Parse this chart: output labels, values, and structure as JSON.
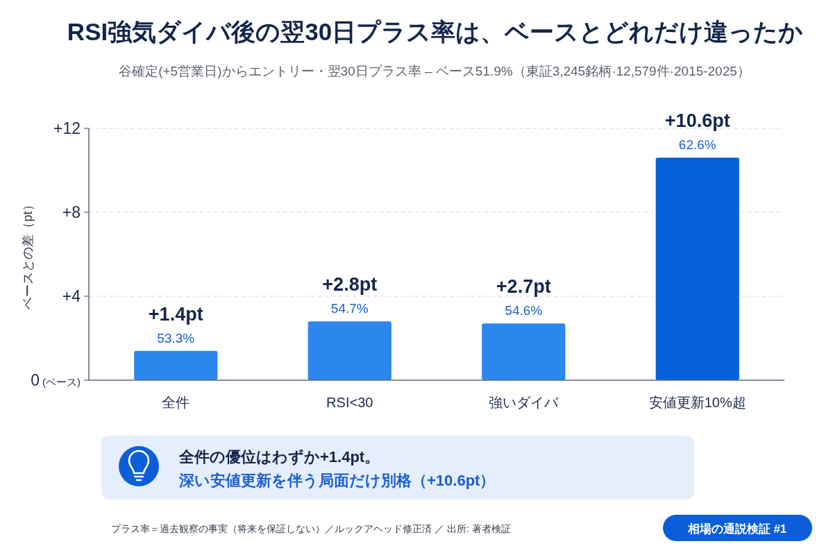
{
  "chart_data": {
    "type": "bar",
    "title": "RSI強気ダイバ後の翌30日プラス率は、ベースとどれだけ違ったか",
    "subtitle": "谷確定(+5営業日)からエントリー・翌30日プラス率 – ベース51.9%（東証3,245銘柄·12,579件·2015-2025）",
    "ylabel": "ベースとの差（pt）",
    "categories": [
      "全件",
      "RSI<30",
      "強いダイバ",
      "安値更新10%超"
    ],
    "values": [
      1.4,
      2.8,
      2.7,
      10.6
    ],
    "colors": [
      "#2b87ec",
      "#2b87ec",
      "#2b87ec",
      "#0561da"
    ],
    "value_labels": [
      "+1.4pt",
      "+2.8pt",
      "+2.7pt",
      "+10.6pt"
    ],
    "ylim": [
      0,
      12
    ],
    "yticks": [
      {
        "value": 0,
        "label": "0 (ベース)"
      },
      {
        "value": 4,
        "label": "+4"
      },
      {
        "value": 8,
        "label": "+8"
      },
      {
        "value": 12,
        "label": "+12"
      }
    ],
    "grid": "y",
    "annotations": [
      "全件の優位はわずか+1.4pt。",
      "深い安値更新を伴う局面だけ別格（+10.6pt）",
      "プラス率＝過去観察の事実（将来を保証しない）／ルックアヘッド修正済 ／ 出所: 著者検証",
      "相場の通説検証 #1",
      {
        "text": "53.3%",
        "x": "全件",
        "y": 1.4
      },
      {
        "text": "54.7%",
        "x": "RSI<30",
        "y": 2.8
      },
      {
        "text": "54.6%",
        "x": "強いダイバ",
        "y": 2.7
      },
      {
        "text": "62.6%",
        "x": "安値更新10%超",
        "y": 10.6
      }
    ]
  }
}
